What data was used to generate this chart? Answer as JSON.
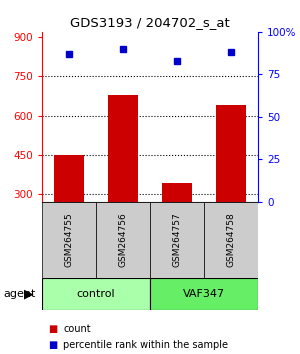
{
  "title": "GDS3193 / 204702_s_at",
  "samples": [
    "GSM264755",
    "GSM264756",
    "GSM264757",
    "GSM264758"
  ],
  "counts": [
    450,
    680,
    340,
    640
  ],
  "percentiles": [
    87,
    90,
    83,
    88
  ],
  "ylim_left": [
    270,
    920
  ],
  "ylim_right": [
    0,
    100
  ],
  "yticks_left": [
    300,
    450,
    600,
    750,
    900
  ],
  "yticks_right": [
    0,
    25,
    50,
    75,
    100
  ],
  "bar_color": "#cc0000",
  "dot_color": "#0000cc",
  "groups": [
    {
      "label": "control",
      "indices": [
        0,
        1
      ],
      "color": "#aaffaa"
    },
    {
      "label": "VAF347",
      "indices": [
        2,
        3
      ],
      "color": "#66ee66"
    }
  ],
  "sample_box_color": "#cccccc",
  "agent_label": "agent",
  "legend_items": [
    {
      "label": "count",
      "color": "#cc0000"
    },
    {
      "label": "percentile rank within the sample",
      "color": "#0000cc"
    }
  ],
  "figsize": [
    3.0,
    3.54
  ],
  "dpi": 100
}
